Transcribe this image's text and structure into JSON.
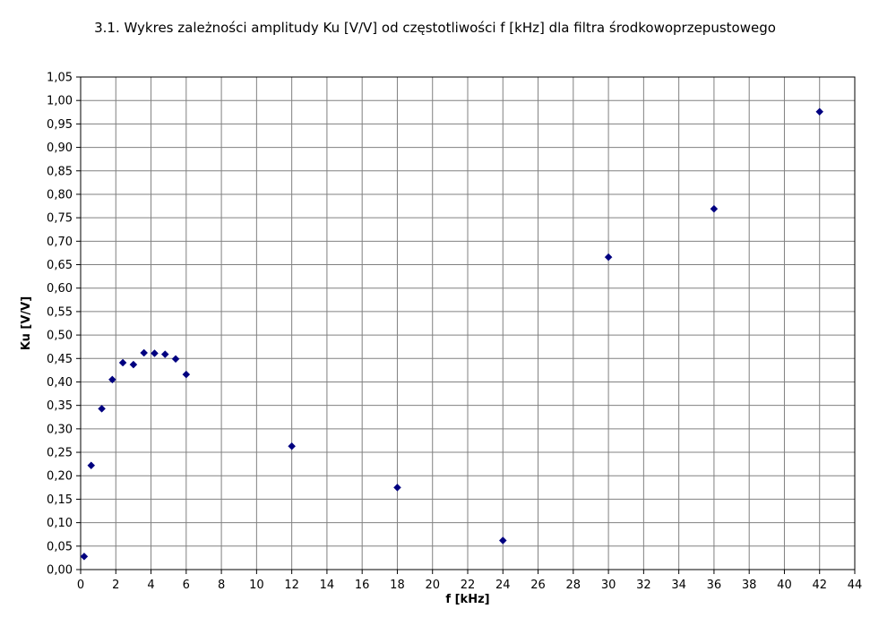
{
  "chart_data": {
    "type": "scatter",
    "title": "3.1. Wykres zależności amplitudy Ku [V/V] od częstotliwości f [kHz] dla filtra środkowoprzepustowego",
    "xlabel": "f [kHz]",
    "ylabel": "Ku [V/V]",
    "xlim": [
      0,
      44
    ],
    "ylim": [
      0,
      1.05
    ],
    "x_ticks": [
      0,
      2,
      4,
      6,
      8,
      10,
      12,
      14,
      16,
      18,
      20,
      22,
      24,
      26,
      28,
      30,
      32,
      34,
      36,
      38,
      40,
      42,
      44
    ],
    "y_ticks": [
      0.0,
      0.05,
      0.1,
      0.15,
      0.2,
      0.25,
      0.3,
      0.35,
      0.4,
      0.45,
      0.5,
      0.55,
      0.6,
      0.65,
      0.7,
      0.75,
      0.8,
      0.85,
      0.9,
      0.95,
      1.0,
      1.05
    ],
    "y_tick_labels": [
      "0,00",
      "0,05",
      "0,10",
      "0,15",
      "0,20",
      "0,25",
      "0,30",
      "0,35",
      "0,40",
      "0,45",
      "0,50",
      "0,55",
      "0,60",
      "0,65",
      "0,70",
      "0,75",
      "0,80",
      "0,85",
      "0,90",
      "0,95",
      "1,00",
      "1,05"
    ],
    "grid": true,
    "legend": "none",
    "marker_color": "#000080",
    "points": [
      {
        "x": 0.2,
        "y": 0.028
      },
      {
        "x": 0.6,
        "y": 0.222
      },
      {
        "x": 1.2,
        "y": 0.343
      },
      {
        "x": 1.8,
        "y": 0.405
      },
      {
        "x": 2.4,
        "y": 0.441
      },
      {
        "x": 3.0,
        "y": 0.437
      },
      {
        "x": 3.6,
        "y": 0.462
      },
      {
        "x": 4.2,
        "y": 0.461
      },
      {
        "x": 4.8,
        "y": 0.459
      },
      {
        "x": 5.4,
        "y": 0.449
      },
      {
        "x": 6.0,
        "y": 0.416
      },
      {
        "x": 12,
        "y": 0.263
      },
      {
        "x": 18,
        "y": 0.175
      },
      {
        "x": 24,
        "y": 0.062
      },
      {
        "x": 30,
        "y": 0.666
      },
      {
        "x": 36,
        "y": 0.769
      },
      {
        "x": 42,
        "y": 0.976
      }
    ]
  }
}
